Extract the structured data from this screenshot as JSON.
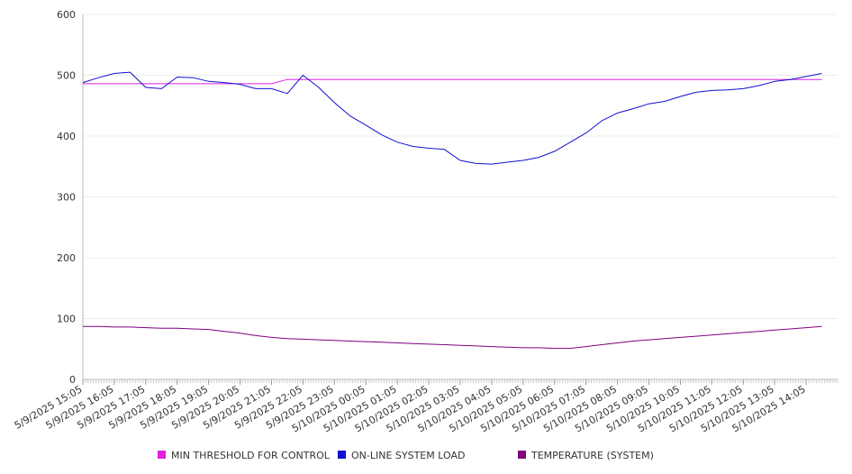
{
  "chart_data": {
    "type": "line",
    "ylim": [
      0,
      600
    ],
    "y_ticks": [
      0,
      100,
      200,
      300,
      400,
      500,
      600
    ],
    "grid": true,
    "legend_position": "bottom",
    "x_tick_labels": [
      "5/9/2025 15:05",
      "5/9/2025 16:05",
      "5/9/2025 17:05",
      "5/9/2025 18:05",
      "5/9/2025 19:05",
      "5/9/2025 20:05",
      "5/9/2025 21:05",
      "5/9/2025 22:05",
      "5/9/2025 23:05",
      "5/10/2025 00:05",
      "5/10/2025 01:05",
      "5/10/2025 02:05",
      "5/10/2025 03:05",
      "5/10/2025 04:05",
      "5/10/2025 05:05",
      "5/10/2025 06:05",
      "5/10/2025 07:05",
      "5/10/2025 08:05",
      "5/10/2025 09:05",
      "5/10/2025 10:05",
      "5/10/2025 11:05",
      "5/10/2025 12:05",
      "5/10/2025 13:05",
      "5/10/2025 14:05"
    ],
    "x": [
      "5/9/2025 15:05",
      "5/9/2025 15:35",
      "5/9/2025 16:05",
      "5/9/2025 16:35",
      "5/9/2025 17:05",
      "5/9/2025 17:35",
      "5/9/2025 18:05",
      "5/9/2025 18:35",
      "5/9/2025 19:05",
      "5/9/2025 19:35",
      "5/9/2025 20:05",
      "5/9/2025 20:35",
      "5/9/2025 21:05",
      "5/9/2025 21:35",
      "5/9/2025 22:05",
      "5/9/2025 22:35",
      "5/9/2025 23:05",
      "5/9/2025 23:35",
      "5/10/2025 00:05",
      "5/10/2025 00:35",
      "5/10/2025 01:05",
      "5/10/2025 01:35",
      "5/10/2025 02:05",
      "5/10/2025 02:35",
      "5/10/2025 03:05",
      "5/10/2025 03:35",
      "5/10/2025 04:05",
      "5/10/2025 04:35",
      "5/10/2025 05:05",
      "5/10/2025 05:35",
      "5/10/2025 06:05",
      "5/10/2025 06:35",
      "5/10/2025 07:05",
      "5/10/2025 07:35",
      "5/10/2025 08:05",
      "5/10/2025 08:35",
      "5/10/2025 09:05",
      "5/10/2025 09:35",
      "5/10/2025 10:05",
      "5/10/2025 10:35",
      "5/10/2025 11:05",
      "5/10/2025 11:35",
      "5/10/2025 12:05",
      "5/10/2025 12:35",
      "5/10/2025 13:05",
      "5/10/2025 13:35",
      "5/10/2025 14:05",
      "5/10/2025 14:35"
    ],
    "series": [
      {
        "name": "MIN THRESHOLD FOR CONTROL",
        "color": "#e020e0",
        "values": [
          486,
          486,
          486,
          486,
          486,
          486,
          486,
          486,
          486,
          486,
          486,
          486,
          486,
          493,
          493,
          493,
          493,
          493,
          493,
          493,
          493,
          493,
          493,
          493,
          493,
          493,
          493,
          493,
          493,
          493,
          493,
          493,
          493,
          493,
          493,
          493,
          493,
          493,
          493,
          493,
          493,
          493,
          493,
          493,
          493,
          493,
          493,
          493
        ]
      },
      {
        "name": "ON-LINE SYSTEM LOAD",
        "color": "#1010d0",
        "values": [
          488,
          496,
          503,
          505,
          480,
          478,
          497,
          496,
          490,
          488,
          485,
          478,
          478,
          470,
          500,
          480,
          455,
          433,
          418,
          402,
          390,
          383,
          380,
          378,
          360,
          355,
          354,
          357,
          360,
          365,
          375,
          390,
          405,
          425,
          438,
          445,
          453,
          457,
          465,
          472,
          475,
          476,
          478,
          483,
          490,
          493,
          498,
          503
        ]
      },
      {
        "name": "TEMPERATURE (SYSTEM)",
        "color": "#800080",
        "values": [
          87,
          87,
          86,
          86,
          85,
          84,
          84,
          83,
          82,
          79,
          76,
          72,
          69,
          67,
          66,
          65,
          64,
          63,
          62,
          61,
          60,
          59,
          58,
          57,
          56,
          55,
          54,
          53,
          52,
          52,
          51,
          51,
          54,
          57,
          60,
          63,
          65,
          67,
          69,
          71,
          73,
          75,
          77,
          79,
          81,
          83,
          85,
          87
        ]
      }
    ]
  }
}
